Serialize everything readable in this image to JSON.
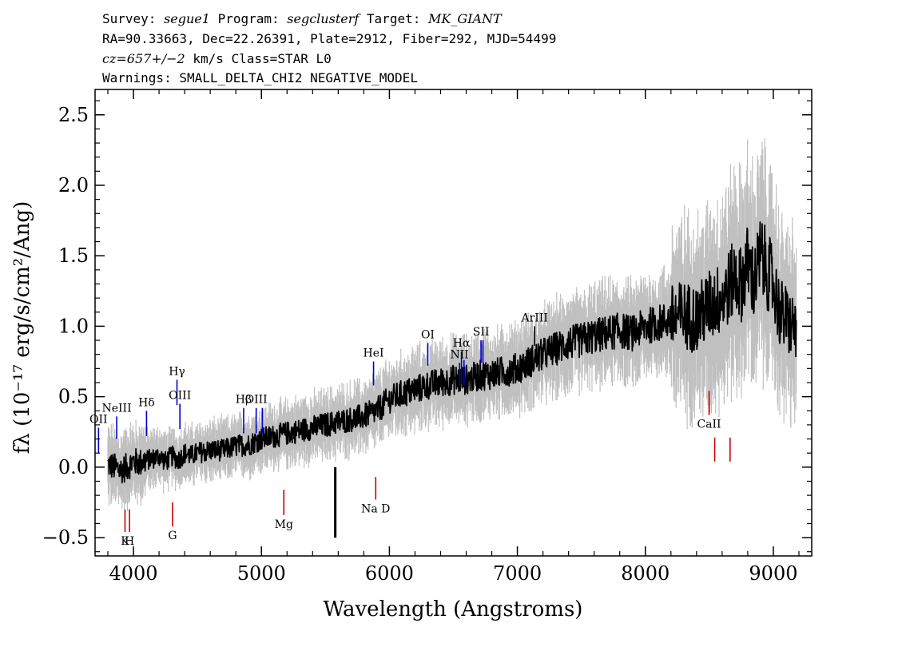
{
  "header": {
    "line1": {
      "survey_label": "Survey:",
      "survey": "segue1",
      "program_label": " Program:",
      "program": "segclusterf",
      "target_label": " Target:",
      "target": "MK_GIANT"
    },
    "line2": "RA=90.33663, Dec=22.26391, Plate=2912, Fiber=292, MJD=54499",
    "line3": {
      "cz": "cz=657+/−2",
      "rest": " km/s Class=STAR L0"
    },
    "line4": "Warnings: SMALL_DELTA_CHI2 NEGATIVE_MODEL"
  },
  "chart_data": {
    "type": "line",
    "xlabel": "Wavelength (Angstroms)",
    "ylabel": "fλ (10⁻¹⁷ erg/s/cm²/Ang)",
    "xlim": [
      3700,
      9300
    ],
    "ylim": [
      -0.63,
      2.68
    ],
    "xticks": [
      4000,
      5000,
      6000,
      7000,
      8000,
      9000
    ],
    "yticks": [
      -0.5,
      0.0,
      0.5,
      1.0,
      1.5,
      2.0,
      2.5
    ],
    "ytick_labels": [
      "−0.5",
      "0.0",
      "0.5",
      "1.0",
      "1.5",
      "2.0",
      "2.5"
    ],
    "colors": {
      "flux": "#000000",
      "error": "#c0c0c0",
      "emission": "#0000cc",
      "absorption": "#cc0000",
      "sky": "#000000"
    },
    "series": [
      {
        "name": "flux",
        "x": [
          3800,
          3850,
          3900,
          3950,
          4000,
          4050,
          4100,
          4150,
          4200,
          4250,
          4300,
          4350,
          4400,
          4450,
          4500,
          4600,
          4700,
          4800,
          4900,
          5000,
          5100,
          5200,
          5300,
          5400,
          5500,
          5600,
          5700,
          5800,
          5900,
          6000,
          6100,
          6200,
          6300,
          6400,
          6500,
          6600,
          6700,
          6800,
          6900,
          7000,
          7100,
          7200,
          7300,
          7400,
          7500,
          7600,
          7700,
          7800,
          7900,
          8000,
          8100,
          8200,
          8300,
          8400,
          8500,
          8600,
          8700,
          8750,
          8800,
          8850,
          8900,
          8950,
          9000,
          9050,
          9100,
          9150,
          9180
        ],
        "y": [
          0.02,
          0.0,
          -0.02,
          0.0,
          0.04,
          0.03,
          0.05,
          0.06,
          0.08,
          0.04,
          0.08,
          0.05,
          0.1,
          0.08,
          0.1,
          0.12,
          0.12,
          0.15,
          0.16,
          0.2,
          0.22,
          0.24,
          0.26,
          0.28,
          0.3,
          0.32,
          0.34,
          0.36,
          0.4,
          0.48,
          0.52,
          0.55,
          0.58,
          0.6,
          0.62,
          0.62,
          0.65,
          0.66,
          0.68,
          0.7,
          0.75,
          0.8,
          0.84,
          0.88,
          0.9,
          0.93,
          0.95,
          0.97,
          0.95,
          1.0,
          1.02,
          1.05,
          1.08,
          1.05,
          1.15,
          1.2,
          1.35,
          1.3,
          1.45,
          1.3,
          1.5,
          1.4,
          1.3,
          1.1,
          1.05,
          1.0,
          0.98
        ]
      }
    ],
    "sky_line": {
      "x": 5577,
      "y_low": -0.5,
      "y_high": 0.0
    },
    "emission_lines": [
      {
        "label": "OII",
        "x": 3727,
        "y_low": 0.1,
        "y_high": 0.28
      },
      {
        "label": "NeIII",
        "x": 3869,
        "y_low": 0.2,
        "y_high": 0.36
      },
      {
        "label": "Hδ",
        "x": 4102,
        "y_low": 0.22,
        "y_high": 0.4
      },
      {
        "label": "Hγ",
        "x": 4340,
        "y_low": 0.44,
        "y_high": 0.62
      },
      {
        "label": "OIII",
        "x": 4363,
        "y_low": 0.27,
        "y_high": 0.45
      },
      {
        "label": "Hβ",
        "x": 4861,
        "y_low": 0.24,
        "y_high": 0.42
      },
      {
        "label": "OIII",
        "x": 4959,
        "y_low": 0.24,
        "y_high": 0.42
      },
      {
        "label": "OIII",
        "x": 5007,
        "y_low": 0.24,
        "y_high": 0.42
      },
      {
        "label": "HeI",
        "x": 5876,
        "y_low": 0.58,
        "y_high": 0.75
      },
      {
        "label": "OI",
        "x": 6300,
        "y_low": 0.72,
        "y_high": 0.88
      },
      {
        "label": "NII",
        "x": 6548,
        "y_low": 0.58,
        "y_high": 0.74
      },
      {
        "label": "Hα",
        "x": 6563,
        "y_low": 0.6,
        "y_high": 0.82
      },
      {
        "label": "NII",
        "x": 6583,
        "y_low": 0.58,
        "y_high": 0.76
      },
      {
        "label": "SII",
        "x": 6716,
        "y_low": 0.74,
        "y_high": 0.9
      },
      {
        "label": "SII",
        "x": 6731,
        "y_low": 0.74,
        "y_high": 0.9
      }
    ],
    "absorption_lines": [
      {
        "label": "K",
        "x": 3934,
        "y_low": -0.46,
        "y_high": -0.3
      },
      {
        "label": "H",
        "x": 3969,
        "y_low": -0.46,
        "y_high": -0.3
      },
      {
        "label": "G",
        "x": 4305,
        "y_low": -0.42,
        "y_high": -0.25
      },
      {
        "label": "Mg",
        "x": 5175,
        "y_low": -0.34,
        "y_high": -0.16
      },
      {
        "label": "Na D",
        "x": 5893,
        "y_low": -0.23,
        "y_high": -0.07
      },
      {
        "label": "CaII",
        "x": 8498,
        "y_low": 0.37,
        "y_high": 0.54
      },
      {
        "label": "CaII",
        "x": 8542,
        "y_low": 0.04,
        "y_high": 0.21
      },
      {
        "label": "CaII",
        "x": 8662,
        "y_low": 0.04,
        "y_high": 0.21
      }
    ],
    "neutral_lines": [
      {
        "label": "ArIII",
        "x": 7135,
        "y_low": 0.86,
        "y_high": 1.0
      }
    ]
  }
}
